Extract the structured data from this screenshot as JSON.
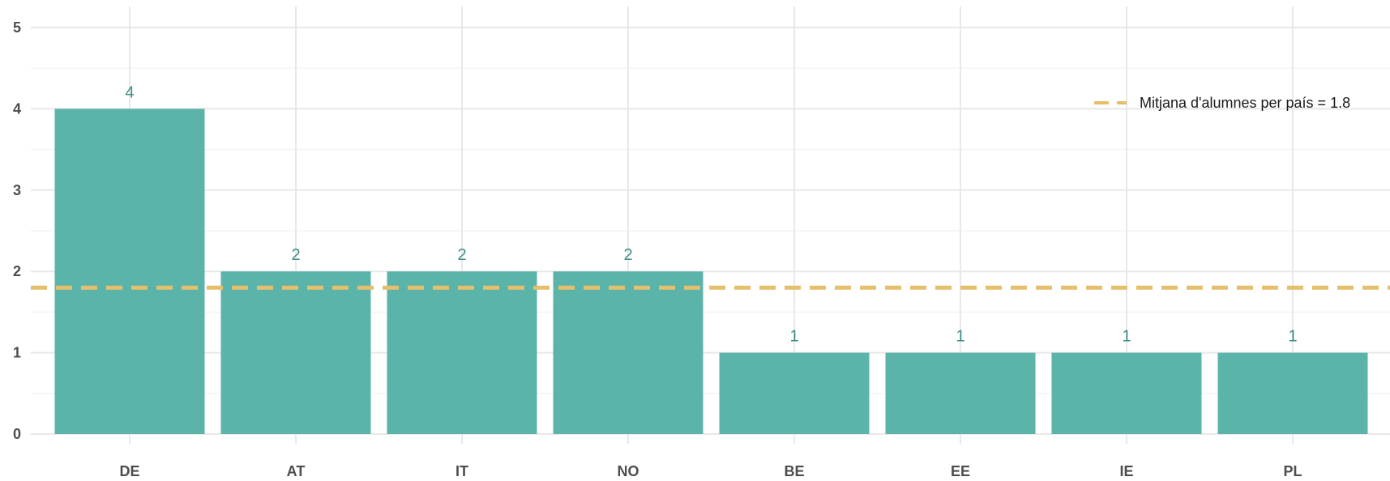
{
  "chart_data": {
    "type": "bar",
    "title": "",
    "xlabel": "",
    "ylabel": "",
    "categories": [
      "DE",
      "AT",
      "IT",
      "NO",
      "BE",
      "EE",
      "IE",
      "PL"
    ],
    "values": [
      4,
      2,
      2,
      2,
      1,
      1,
      1,
      1
    ],
    "data_labels": [
      "4",
      "2",
      "2",
      "2",
      "1",
      "1",
      "1",
      "1"
    ],
    "ylim": [
      0,
      5
    ],
    "yticks": [
      0,
      1,
      2,
      3,
      4,
      5
    ],
    "ytick_labels": [
      "0",
      "1",
      "2",
      "3",
      "4",
      "5"
    ],
    "grid": true,
    "reference_line": {
      "value": 1.8,
      "style": "dashed",
      "label": "Mitjana d'alumnes per país = 1.8"
    },
    "legend": {
      "position": "top-right"
    },
    "colors": {
      "bar": "#5bb4aa",
      "data_label": "#3e8e88",
      "reference_line": "#e6bf6c",
      "grid": "#e8e8e8",
      "tick_text": "#4d4d4d"
    }
  }
}
